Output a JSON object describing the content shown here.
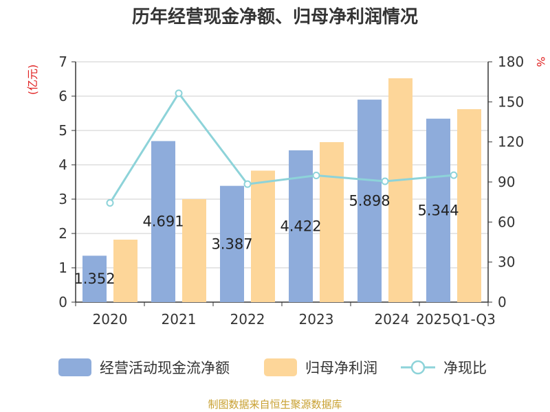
{
  "chart_data": {
    "type": "bar",
    "title": "历年经营现金净额、归母净利润情况",
    "categories": [
      "2020",
      "2021",
      "2022",
      "2023",
      "2024",
      "2025Q1-Q3"
    ],
    "y_left": {
      "label": "(亿元)",
      "ylim": [
        0,
        7
      ],
      "ticks": [
        "0",
        "1",
        "2",
        "3",
        "4",
        "5",
        "6",
        "7"
      ]
    },
    "y_right": {
      "label": "%",
      "ylim": [
        0,
        180
      ],
      "ticks": [
        "0",
        "30",
        "60",
        "90",
        "120",
        "150",
        "180"
      ]
    },
    "series": [
      {
        "name": "经营活动现金流净额",
        "kind": "bar",
        "axis": "left",
        "color": "#8eacdb",
        "values": [
          1.352,
          4.691,
          3.387,
          4.422,
          5.898,
          5.344
        ],
        "labels": [
          "1.352",
          "4.691",
          "3.387",
          "4.422",
          "5.898",
          "5.344"
        ]
      },
      {
        "name": "归母净利润",
        "kind": "bar",
        "axis": "left",
        "color": "#fdd699",
        "values": [
          1.82,
          3.0,
          3.83,
          4.66,
          6.52,
          5.62
        ]
      },
      {
        "name": "净现比",
        "kind": "line",
        "axis": "right",
        "color": "#8dd3d9",
        "values": [
          74.3,
          156.4,
          88.4,
          94.9,
          90.5,
          95.1
        ]
      }
    ],
    "grid": true,
    "legend": "bottom"
  },
  "source": "制图数据来自恒生聚源数据库"
}
